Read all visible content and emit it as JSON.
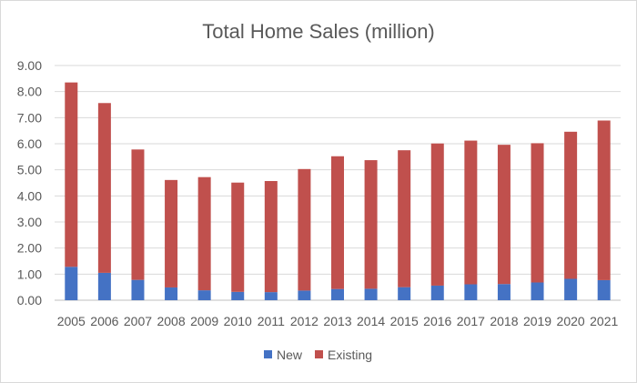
{
  "chart_data": {
    "type": "bar",
    "stacked": true,
    "title": "Total Home Sales (million)",
    "xlabel": "",
    "ylabel": "",
    "ylim": [
      0,
      9
    ],
    "yticks": [
      "0.00",
      "1.00",
      "2.00",
      "3.00",
      "4.00",
      "5.00",
      "6.00",
      "7.00",
      "8.00",
      "9.00"
    ],
    "grid": true,
    "legend_position": "bottom",
    "categories": [
      "2005",
      "2006",
      "2007",
      "2008",
      "2009",
      "2010",
      "2011",
      "2012",
      "2013",
      "2014",
      "2015",
      "2016",
      "2017",
      "2018",
      "2019",
      "2020",
      "2021"
    ],
    "series": [
      {
        "name": "New",
        "color": "#4472c4",
        "values": [
          1.28,
          1.05,
          0.78,
          0.49,
          0.38,
          0.32,
          0.31,
          0.37,
          0.43,
          0.44,
          0.5,
          0.56,
          0.61,
          0.62,
          0.68,
          0.82,
          0.77
        ]
      },
      {
        "name": "Existing",
        "color": "#c0504d",
        "values": [
          7.07,
          6.51,
          5.0,
          4.12,
          4.34,
          4.19,
          4.26,
          4.66,
          5.09,
          4.93,
          5.25,
          5.45,
          5.51,
          5.34,
          5.34,
          5.64,
          6.12
        ]
      }
    ]
  }
}
